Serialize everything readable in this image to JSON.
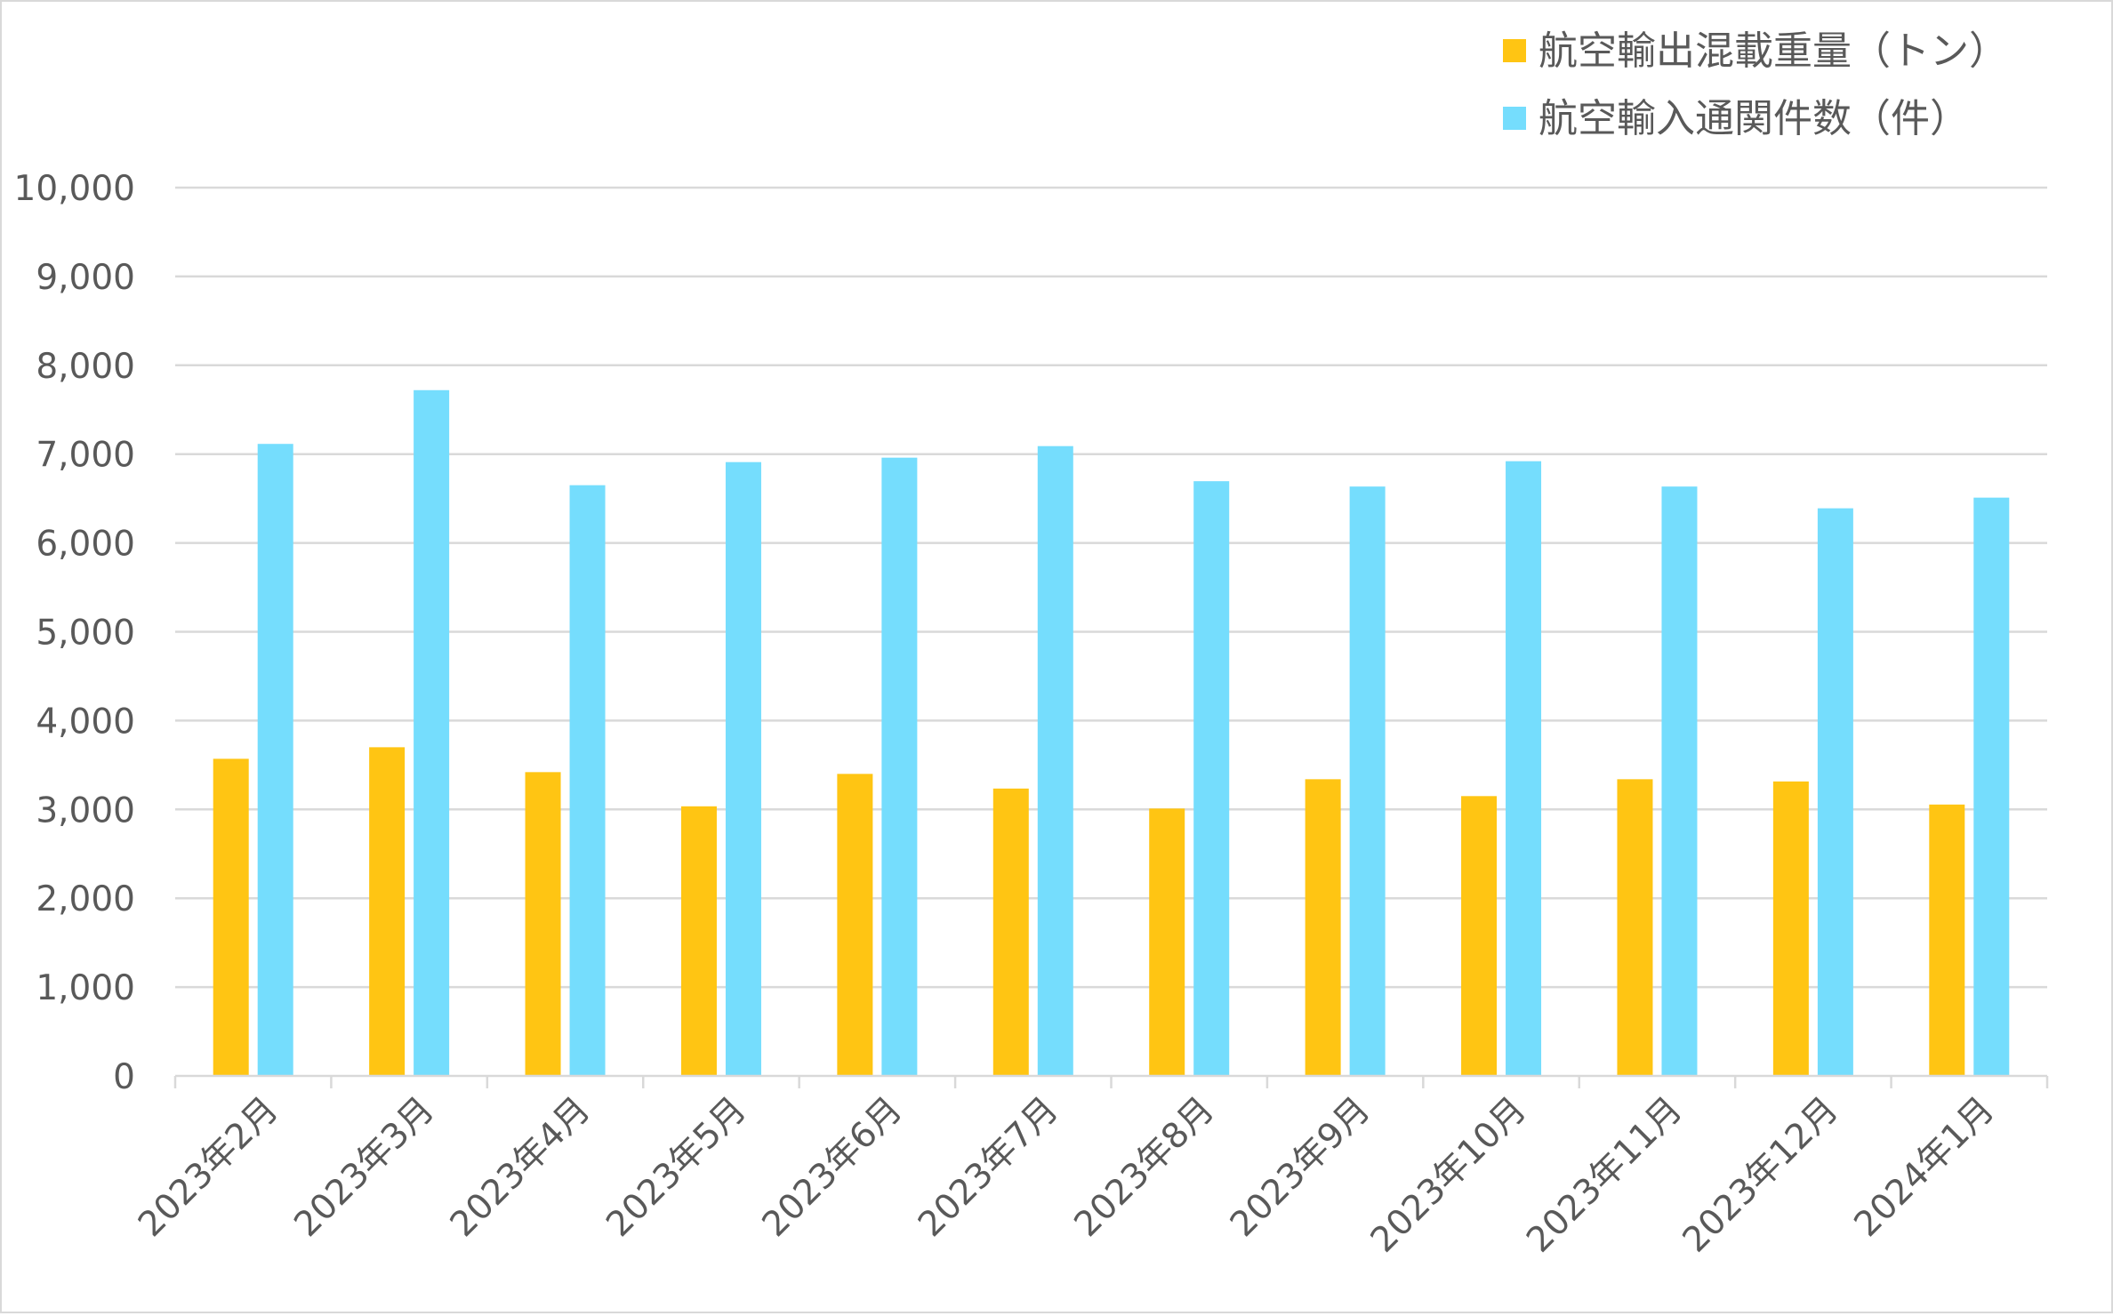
{
  "chart_data": {
    "type": "bar",
    "title": "",
    "xlabel": "",
    "ylabel": "",
    "ylim": [
      0,
      10000
    ],
    "yticks": [
      0,
      1000,
      2000,
      3000,
      4000,
      5000,
      6000,
      7000,
      8000,
      9000,
      10000
    ],
    "ytick_labels": [
      "0",
      "1,000",
      "2,000",
      "3,000",
      "4,000",
      "5,000",
      "6,000",
      "7,000",
      "8,000",
      "9,000",
      "10,000"
    ],
    "grid": true,
    "legend_position": "top-right",
    "categories": [
      "2023年2月",
      "2023年3月",
      "2023年4月",
      "2023年5月",
      "2023年6月",
      "2023年7月",
      "2023年8月",
      "2023年9月",
      "2023年10月",
      "2023年11月",
      "2023年12月",
      "2024年1月"
    ],
    "series": [
      {
        "name": "航空輸出混載重量（トン）",
        "color": "#FFC513",
        "values": [
          3570,
          3700,
          3420,
          3035,
          3400,
          3235,
          3010,
          3340,
          3150,
          3340,
          3315,
          3055
        ]
      },
      {
        "name": "航空輸入通関件数（件）",
        "color": "#75DDFD",
        "values": [
          7115,
          7720,
          6650,
          6910,
          6960,
          7090,
          6695,
          6635,
          6920,
          6635,
          6390,
          6510
        ]
      }
    ]
  }
}
